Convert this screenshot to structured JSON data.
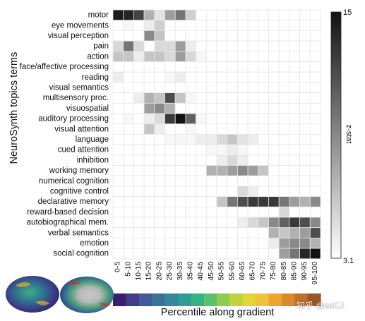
{
  "chart_data": {
    "type": "heatmap",
    "ylabel": "NeuroSynth topics terms",
    "xlabel": "Percentile along gradient",
    "colorbar": {
      "label": "z-stat",
      "min": 3.1,
      "max": 15,
      "min_label": "3.1",
      "max_label": "15",
      "low_color": "#ffffff",
      "high_color": "#111111"
    },
    "columns": [
      "0-5",
      "5-10",
      "10-15",
      "15-20",
      "20-25",
      "25-30",
      "30-35",
      "35-40",
      "40-45",
      "45-50",
      "50-55",
      "55-60",
      "60-65",
      "65-70",
      "70-75",
      "75-80",
      "80-85",
      "85-90",
      "90-95",
      "95-100"
    ],
    "rows": [
      {
        "term": "motor",
        "values": [
          14.5,
          14,
          12.5,
          7,
          4.5,
          8,
          10,
          5.5,
          0,
          0,
          0,
          0,
          0,
          0,
          0,
          0,
          0,
          0,
          0,
          0
        ]
      },
      {
        "term": "eye movements",
        "values": [
          0,
          3.5,
          0,
          4,
          5.5,
          0,
          0,
          0,
          0,
          0,
          0,
          0,
          0,
          0,
          0,
          0,
          0,
          0,
          0,
          0
        ]
      },
      {
        "term": "visual perception",
        "values": [
          0,
          0,
          0,
          9,
          6,
          0,
          0,
          0,
          0,
          0,
          0,
          0,
          0,
          0,
          0,
          0,
          0,
          0,
          0,
          0
        ]
      },
      {
        "term": "pain",
        "values": [
          5,
          10,
          5,
          0,
          5,
          5,
          8,
          4,
          0,
          0,
          0,
          0,
          0,
          0,
          0,
          0,
          0,
          0,
          0,
          0
        ]
      },
      {
        "term": "action",
        "values": [
          6,
          6,
          4,
          6,
          6,
          5,
          8,
          5,
          3.5,
          0,
          0,
          0,
          0,
          0,
          0,
          0,
          0,
          0,
          0,
          0
        ]
      },
      {
        "term": "face/affective processing",
        "values": [
          0,
          0,
          0,
          0,
          0,
          0,
          0,
          0,
          0,
          0,
          0,
          0,
          0,
          0,
          0,
          0,
          0,
          0,
          0,
          0
        ]
      },
      {
        "term": "reading",
        "values": [
          4,
          0,
          0,
          0,
          0,
          3.5,
          4,
          0,
          0,
          0,
          0,
          0,
          0,
          0,
          0,
          0,
          0,
          0,
          0,
          0
        ]
      },
      {
        "term": "visual semantics",
        "values": [
          0,
          0,
          0,
          0,
          0,
          0,
          0,
          0,
          0,
          0,
          0,
          0,
          0,
          0,
          0,
          0,
          0,
          0,
          0,
          0
        ]
      },
      {
        "term": "multisensory proc.",
        "values": [
          0,
          0,
          4,
          7,
          6,
          12,
          6,
          3.5,
          0,
          0,
          0,
          0,
          0,
          0,
          0,
          0,
          0,
          0,
          0,
          0
        ]
      },
      {
        "term": "visuospatial",
        "values": [
          0,
          0,
          0,
          8,
          9,
          7,
          0,
          0,
          0,
          0,
          0,
          0,
          0,
          0,
          0,
          0,
          0,
          0,
          0,
          0
        ]
      },
      {
        "term": "auditory processing",
        "values": [
          0,
          3.5,
          0,
          4,
          5,
          13,
          15,
          11,
          3.5,
          0,
          0,
          0,
          0,
          0,
          0,
          0,
          0,
          0,
          0,
          0
        ]
      },
      {
        "term": "visual attention",
        "values": [
          0,
          0,
          0,
          6,
          4,
          0,
          0,
          3.5,
          0,
          0,
          0,
          0,
          0,
          0,
          0,
          0,
          0,
          0,
          0,
          0
        ]
      },
      {
        "term": "language",
        "values": [
          0,
          0,
          0,
          0,
          0,
          3.5,
          3.5,
          3.5,
          4,
          4,
          5,
          6,
          4.5,
          4,
          0,
          0,
          0,
          0,
          0,
          0
        ]
      },
      {
        "term": "cued attention",
        "values": [
          0,
          0,
          0,
          0,
          0,
          0,
          0,
          0,
          0,
          3.5,
          3.5,
          4,
          3.5,
          0,
          0,
          0,
          0,
          0,
          0,
          0
        ]
      },
      {
        "term": "inhibition",
        "values": [
          0,
          0,
          0,
          0,
          0,
          0,
          0,
          0,
          0,
          0,
          4,
          5,
          4,
          0,
          0,
          0,
          0,
          0,
          0,
          0
        ]
      },
      {
        "term": "working memory",
        "values": [
          0,
          0,
          0,
          0,
          0,
          0,
          0,
          0,
          0,
          7,
          7,
          8,
          9,
          8,
          6,
          0,
          0,
          0,
          0,
          0
        ]
      },
      {
        "term": "numerical cognition",
        "values": [
          0,
          0,
          0,
          0,
          0,
          0,
          0,
          0,
          0,
          0,
          0,
          0,
          0,
          0,
          0,
          0,
          0,
          0,
          0,
          0
        ]
      },
      {
        "term": "cognitive control",
        "values": [
          0,
          0,
          0,
          0,
          0,
          0,
          0,
          0,
          0,
          0,
          0,
          0,
          5,
          4,
          0,
          0,
          0,
          0,
          0,
          0
        ]
      },
      {
        "term": "declarative memory",
        "values": [
          0,
          0,
          0,
          0,
          0,
          0,
          0,
          0,
          0,
          0,
          6,
          10,
          12,
          13,
          13,
          13,
          10,
          8,
          7,
          9
        ]
      },
      {
        "term": "reward-based decision",
        "values": [
          0,
          0,
          0,
          0,
          0,
          0,
          0,
          0,
          0,
          0,
          0,
          0,
          0,
          0,
          0,
          0,
          5,
          0,
          0,
          0
        ]
      },
      {
        "term": "autobiographical mem.",
        "values": [
          0,
          0,
          0,
          0,
          0,
          0,
          0,
          0,
          0,
          0,
          0,
          0,
          4,
          5,
          6,
          9,
          11,
          13,
          12,
          9
        ]
      },
      {
        "term": "verbal semantics",
        "values": [
          0,
          0,
          0,
          0,
          0,
          0,
          0,
          0,
          0,
          0,
          0,
          0,
          0,
          0,
          0,
          7,
          6,
          7,
          8,
          12
        ]
      },
      {
        "term": "emotion",
        "values": [
          0,
          0,
          0,
          0,
          0,
          0,
          0,
          0,
          0,
          0,
          0,
          0,
          0,
          0,
          0,
          4,
          8,
          9,
          9,
          7
        ]
      },
      {
        "term": "social cognition",
        "values": [
          0,
          0,
          0,
          0,
          0,
          0,
          0,
          0,
          0,
          0,
          0,
          0,
          0,
          0,
          0,
          0,
          8,
          10,
          14,
          15
        ]
      }
    ],
    "gradient_strip_colors": [
      "#3b1f6e",
      "#433c89",
      "#3f5a96",
      "#3a7199",
      "#348899",
      "#2d9e93",
      "#34b283",
      "#5cc16a",
      "#8ccd50",
      "#bdd43c",
      "#e3d43a",
      "#f0c23a",
      "#eba531",
      "#d98a2d",
      "#c0702a",
      "#9a5827"
    ]
  },
  "watermark": "知乎 @asCJ"
}
